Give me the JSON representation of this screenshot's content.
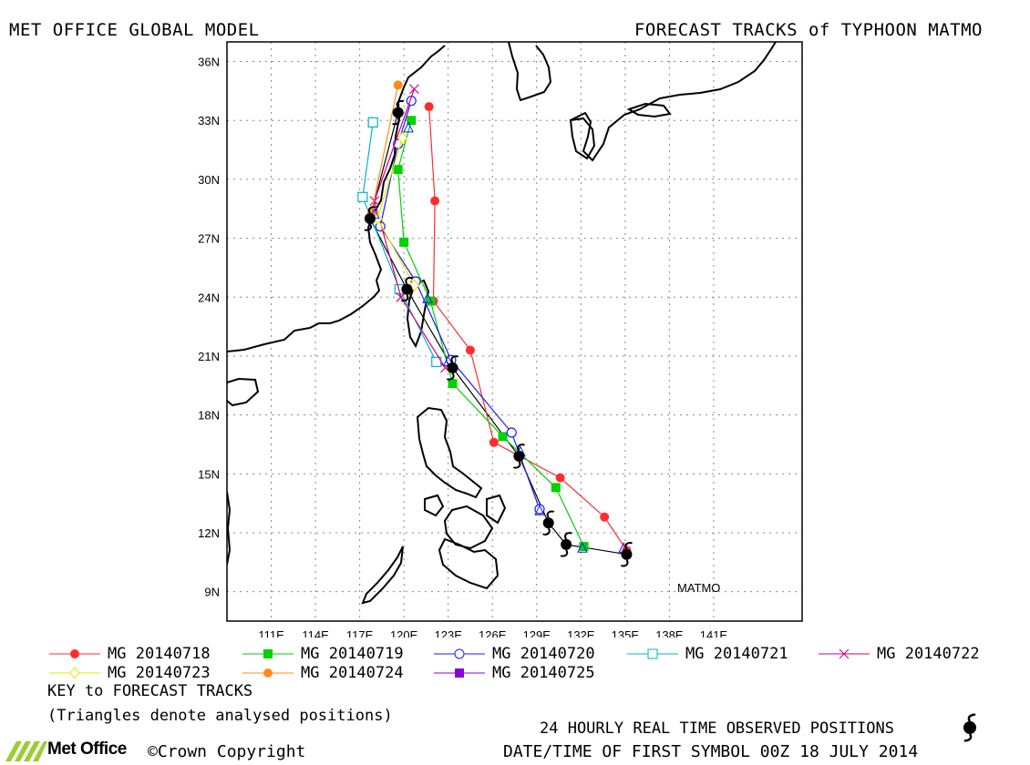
{
  "header": {
    "left_title": "MET OFFICE GLOBAL MODEL",
    "right_title": "FORECAST TRACKS of TYPHOON MATMO"
  },
  "chart_data": {
    "type": "map",
    "lon_range": [
      108,
      147
    ],
    "lat_range": [
      7.5,
      37
    ],
    "x_ticks": [
      "111E",
      "114E",
      "117E",
      "120E",
      "123E",
      "126E",
      "129E",
      "132E",
      "135E",
      "138E",
      "141E"
    ],
    "y_ticks": [
      "9N",
      "12N",
      "15N",
      "18N",
      "21N",
      "24N",
      "27N",
      "30N",
      "33N",
      "36N"
    ],
    "storm_label": "MATMO",
    "observed": [
      [
        135.1,
        10.9
      ],
      [
        131.0,
        11.4
      ],
      [
        129.8,
        12.5
      ],
      [
        127.8,
        15.9
      ],
      [
        123.3,
        20.4
      ],
      [
        120.2,
        24.4
      ],
      [
        117.7,
        28.0
      ],
      [
        119.6,
        33.4
      ]
    ],
    "analysed_positions": [
      [
        134.9,
        11.2
      ],
      [
        132.1,
        11.2
      ],
      [
        129.2,
        13.1
      ],
      [
        127.9,
        16.1
      ],
      [
        123.0,
        20.7
      ],
      [
        121.6,
        23.9
      ],
      [
        118.0,
        28.2
      ],
      [
        120.3,
        32.6
      ]
    ],
    "series": [
      {
        "name": "MG 20140718",
        "color": "#ff2d2d",
        "marker": "filled-circle",
        "points": [
          [
            135.1,
            11.1
          ],
          [
            133.6,
            12.8
          ],
          [
            130.6,
            14.8
          ],
          [
            126.1,
            16.6
          ],
          [
            124.5,
            21.3
          ],
          [
            122.0,
            23.8
          ],
          [
            122.1,
            28.9
          ],
          [
            121.7,
            33.7
          ]
        ]
      },
      {
        "name": "MG 20140719",
        "color": "#00d200",
        "marker": "filled-square",
        "points": [
          [
            132.2,
            11.3
          ],
          [
            130.3,
            14.3
          ],
          [
            126.7,
            16.9
          ],
          [
            123.3,
            19.6
          ],
          [
            121.8,
            23.8
          ],
          [
            120.0,
            26.8
          ],
          [
            119.6,
            30.5
          ],
          [
            120.5,
            33.0
          ]
        ]
      },
      {
        "name": "MG 20140720",
        "color": "#1a1aff",
        "marker": "open-circle",
        "points": [
          [
            129.2,
            13.2
          ],
          [
            127.3,
            17.1
          ],
          [
            123.2,
            20.8
          ],
          [
            120.8,
            24.8
          ],
          [
            118.4,
            27.6
          ],
          [
            119.6,
            31.8
          ],
          [
            120.5,
            34.0
          ]
        ]
      },
      {
        "name": "MG 20140721",
        "color": "#00b4d2",
        "marker": "open-square",
        "points": [
          [
            122.2,
            20.7
          ],
          [
            119.7,
            24.4
          ],
          [
            117.2,
            29.1
          ],
          [
            117.9,
            32.9
          ]
        ]
      },
      {
        "name": "MG 20140722",
        "color": "#d2007d",
        "marker": "cross",
        "points": [
          [
            122.8,
            20.4
          ],
          [
            119.8,
            24.0
          ],
          [
            118.0,
            28.9
          ],
          [
            120.7,
            34.6
          ]
        ]
      },
      {
        "name": "MG 20140723",
        "color": "#e6e600",
        "marker": "open-diamond",
        "points": [
          [
            120.7,
            24.6
          ],
          [
            118.2,
            28.0
          ],
          [
            119.9,
            32.1
          ]
        ]
      },
      {
        "name": "MG 20140724",
        "color": "#ff8c1a",
        "marker": "filled-circle",
        "points": [
          [
            117.8,
            28.3
          ],
          [
            119.6,
            34.8
          ]
        ]
      },
      {
        "name": "MG 20140725",
        "color": "#8c00d2",
        "marker": "filled-square",
        "points": []
      }
    ]
  },
  "legend": {
    "key_label": "KEY to FORECAST TRACKS",
    "triangles_note": "(Triangles denote analysed positions)"
  },
  "footer": {
    "observed_label": "24 HOURLY REAL TIME OBSERVED POSITIONS",
    "datetime_label": "DATE/TIME OF FIRST SYMBOL 00Z 18 JULY 2014",
    "logo_text": "Met Office",
    "copyright": "©Crown Copyright"
  }
}
